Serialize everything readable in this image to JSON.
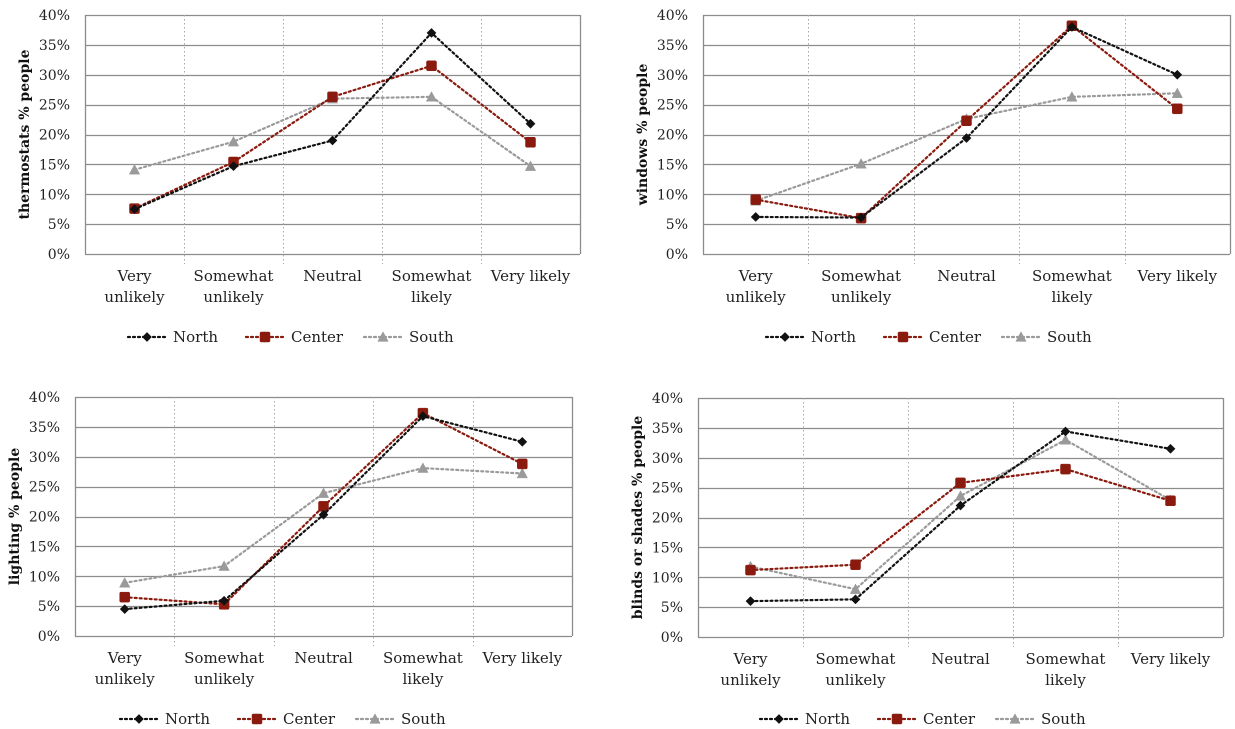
{
  "legend": [
    {
      "name": "North",
      "color": "#111111",
      "marker": "diamond"
    },
    {
      "name": "Center",
      "color": "#8b1a0e",
      "marker": "square"
    },
    {
      "name": "South",
      "color": "#9a9a9a",
      "marker": "triangle"
    }
  ],
  "chart_data": [
    {
      "type": "line",
      "ylabel": "thermostats % people",
      "categories": [
        [
          "Very",
          "unlikely"
        ],
        [
          "Somewhat",
          "unlikely"
        ],
        [
          "Neutral"
        ],
        [
          "Somewhat",
          "likely"
        ],
        [
          "Very likely"
        ]
      ],
      "ylim": [
        0,
        40
      ],
      "yticks": [
        "0%",
        "5%",
        "10%",
        "15%",
        "20%",
        "25%",
        "30%",
        "35%",
        "40%"
      ],
      "grid": true,
      "legend_position": "bottom",
      "series": [
        {
          "name": "North",
          "values": [
            7.5,
            14.7,
            19.0,
            37.0,
            21.8
          ]
        },
        {
          "name": "Center",
          "values": [
            7.6,
            15.4,
            26.3,
            31.5,
            18.7
          ]
        },
        {
          "name": "South",
          "values": [
            14.1,
            18.8,
            26.0,
            26.3,
            14.7
          ]
        }
      ]
    },
    {
      "type": "line",
      "ylabel": "windows % people",
      "categories": [
        [
          "Very",
          "unlikely"
        ],
        [
          "Somewhat",
          "unlikely"
        ],
        [
          "Neutral"
        ],
        [
          "Somewhat",
          "likely"
        ],
        [
          "Very likely"
        ]
      ],
      "ylim": [
        0,
        40
      ],
      "yticks": [
        "0%",
        "5%",
        "10%",
        "15%",
        "20%",
        "25%",
        "30%",
        "35%",
        "40%"
      ],
      "grid": true,
      "legend_position": "bottom",
      "series": [
        {
          "name": "North",
          "values": [
            6.2,
            6.1,
            19.4,
            38.0,
            30.0
          ]
        },
        {
          "name": "Center",
          "values": [
            9.1,
            6.0,
            22.3,
            38.2,
            24.3
          ]
        },
        {
          "name": "South",
          "values": [
            8.9,
            15.1,
            22.6,
            26.3,
            26.9
          ]
        }
      ]
    },
    {
      "type": "line",
      "ylabel": "lighting % people",
      "categories": [
        [
          "Very",
          "unlikely"
        ],
        [
          "Somewhat",
          "unlikely"
        ],
        [
          "Neutral"
        ],
        [
          "Somewhat",
          "likely"
        ],
        [
          "Very likely"
        ]
      ],
      "ylim": [
        0,
        40
      ],
      "yticks": [
        "0%",
        "5%",
        "10%",
        "15%",
        "20%",
        "25%",
        "30%",
        "35%",
        "40%"
      ],
      "grid": true,
      "legend_position": "bottom",
      "series": [
        {
          "name": "North",
          "values": [
            4.5,
            5.9,
            20.3,
            36.8,
            32.5
          ]
        },
        {
          "name": "Center",
          "values": [
            6.5,
            5.3,
            21.7,
            37.3,
            28.8
          ]
        },
        {
          "name": "South",
          "values": [
            8.9,
            11.7,
            23.9,
            28.1,
            27.2
          ]
        }
      ]
    },
    {
      "type": "line",
      "ylabel": "blinds or shades % people",
      "categories": [
        [
          "Very",
          "unlikely"
        ],
        [
          "Somewhat",
          "unlikely"
        ],
        [
          "Neutral"
        ],
        [
          "Somewhat",
          "likely"
        ],
        [
          "Very likely"
        ]
      ],
      "ylim": [
        0,
        40
      ],
      "yticks": [
        "0%",
        "5%",
        "10%",
        "15%",
        "20%",
        "25%",
        "30%",
        "35%",
        "40%"
      ],
      "grid": true,
      "legend_position": "bottom",
      "series": [
        {
          "name": "North",
          "values": [
            6.0,
            6.3,
            22.0,
            34.4,
            31.5
          ]
        },
        {
          "name": "Center",
          "values": [
            11.2,
            12.1,
            25.8,
            28.1,
            22.8
          ]
        },
        {
          "name": "South",
          "values": [
            11.8,
            8.0,
            23.6,
            33.0,
            22.9
          ]
        }
      ]
    }
  ]
}
